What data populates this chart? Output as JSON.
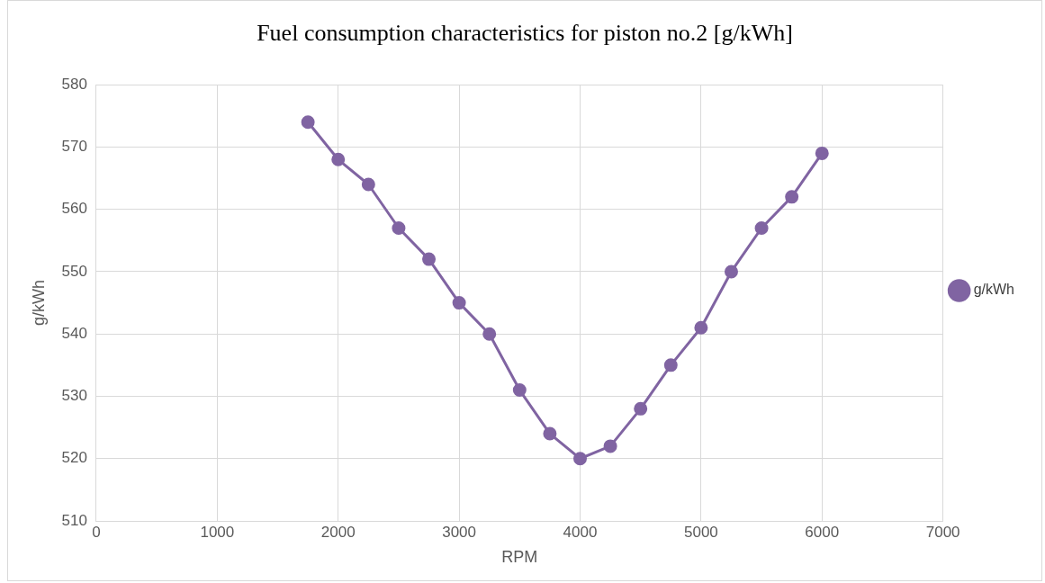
{
  "chart_data": {
    "type": "line",
    "title": "Fuel consumption characteristics for piston no.2 [g/kWh]",
    "xlabel": "RPM",
    "ylabel": "g/kWh",
    "x": [
      1750,
      2000,
      2250,
      2500,
      2750,
      3000,
      3250,
      3500,
      3750,
      4000,
      4250,
      4500,
      4750,
      5000,
      5250,
      5500,
      5750,
      6000
    ],
    "series": [
      {
        "name": "g/kWh",
        "color": "#8064a2",
        "values": [
          574,
          568,
          564,
          557,
          552,
          545,
          540,
          531,
          524,
          520,
          522,
          528,
          535,
          541,
          550,
          557,
          562,
          569
        ]
      }
    ],
    "xlim": [
      0,
      7000
    ],
    "xticks": [
      0,
      1000,
      2000,
      3000,
      4000,
      5000,
      6000,
      7000
    ],
    "ylim": [
      510,
      580
    ],
    "yticks": [
      510,
      520,
      530,
      540,
      550,
      560,
      570,
      580
    ],
    "grid": true,
    "legend": "right",
    "marker": "circle",
    "line_style": "solid"
  }
}
